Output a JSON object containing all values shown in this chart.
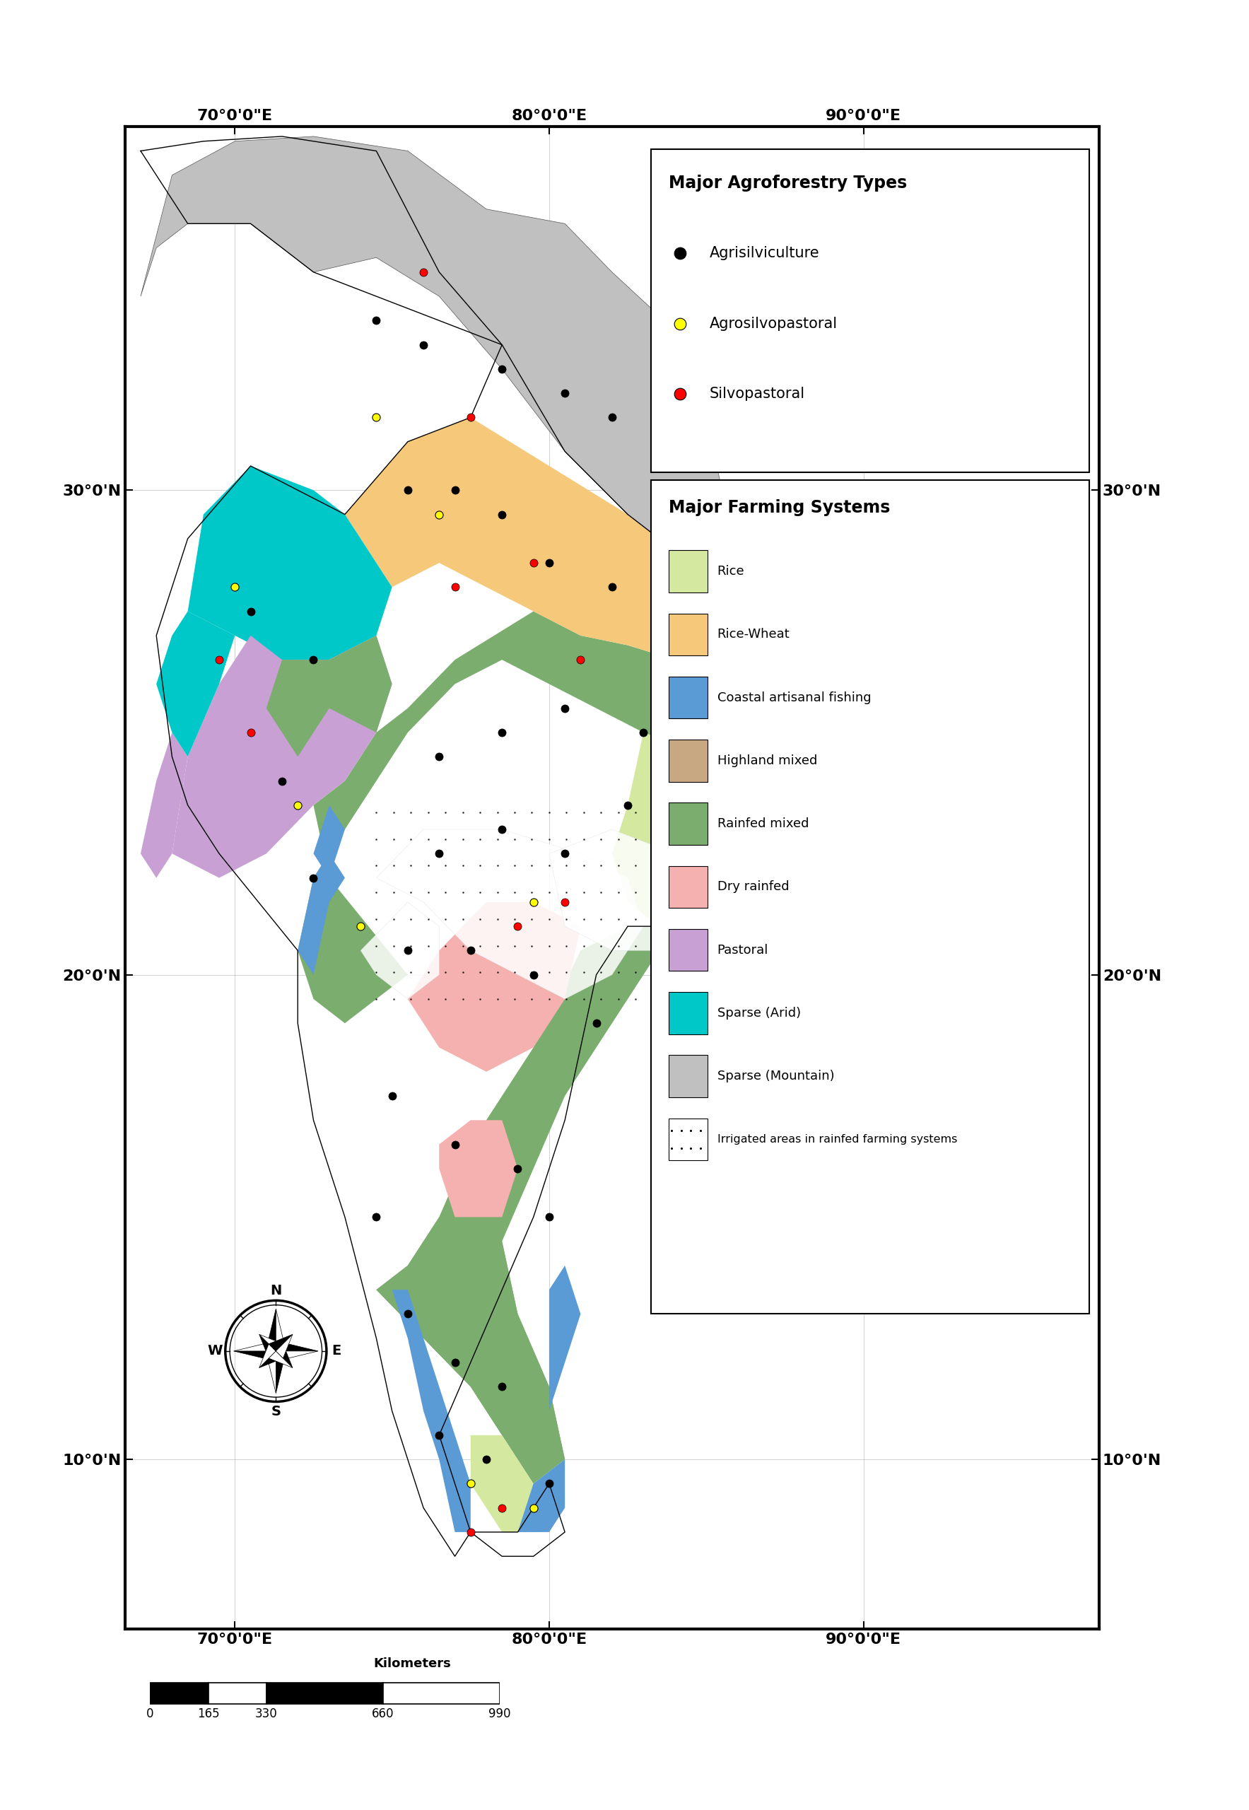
{
  "map_extent": [
    66.5,
    97.5,
    6.5,
    37.5
  ],
  "lon_ticks": [
    70,
    80,
    90
  ],
  "lat_ticks": [
    10,
    20,
    30
  ],
  "lon_tick_labels": [
    "70°0'0\"E",
    "80°0'0\"E",
    "90°0'0\"E"
  ],
  "lat_tick_labels": [
    "10°0'N",
    "20°0'N",
    "30°0'N"
  ],
  "title_agroforestry": "Major Agroforestry Types",
  "title_farming": "Major Farming Systems",
  "agroforestry_types": [
    "Agrisilviculture",
    "Agrosilvopastoral",
    "Silvopastoral"
  ],
  "agroforestry_colors": [
    "#000000",
    "#FFFF00",
    "#FF0000"
  ],
  "farming_systems": [
    "Rice",
    "Rice-Wheat",
    "Coastal artisanal fishing",
    "Highland mixed",
    "Rainfed mixed",
    "Dry rainfed",
    "Pastoral",
    "Sparse (Arid)",
    "Sparse (Mountain)"
  ],
  "farming_colors": [
    "#d4e8a0",
    "#f5c87a",
    "#5b9bd5",
    "#c8a882",
    "#7aad6e",
    "#f5b0b0",
    "#c8a0d4",
    "#00c8c8",
    "#c0c0c0"
  ],
  "irrigated_label": "Irrigated areas in rainfed farming systems",
  "ocean_color": "#ffffff",
  "border_color": "#000000",
  "scale_bar_km": [
    0,
    165,
    330,
    660,
    990
  ]
}
